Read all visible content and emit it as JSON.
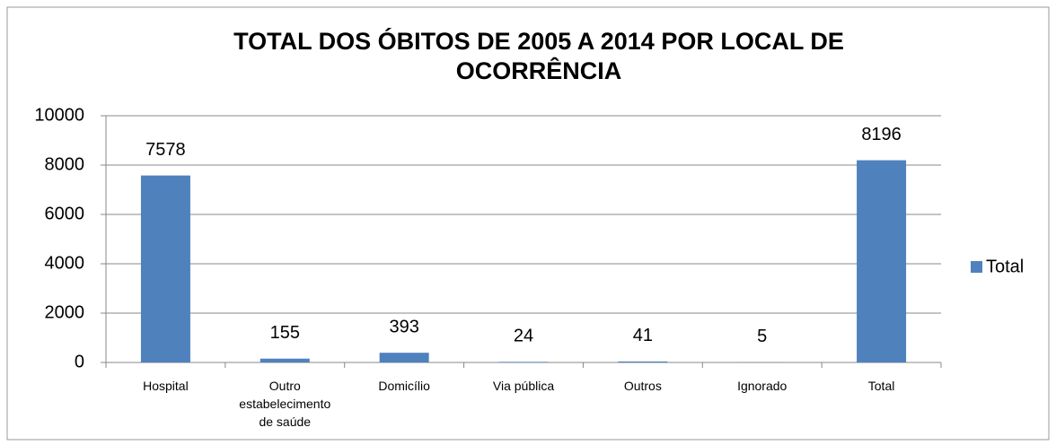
{
  "chart_data": {
    "type": "bar",
    "title": "TOTAL DOS ÓBITOS DE 2005 A 2014 POR LOCAL DE OCORRÊNCIA",
    "categories": [
      "Hospital",
      "Outro estabelecimento de saúde",
      "Domicílio",
      "Via pública",
      "Outros",
      "Ignorado",
      "Total"
    ],
    "series": [
      {
        "name": "Total",
        "color": "#4f81bd",
        "values": [
          7578,
          155,
          393,
          24,
          41,
          5,
          8196
        ]
      }
    ],
    "ylim": [
      0,
      10000
    ],
    "yticks": [
      0,
      2000,
      4000,
      6000,
      8000,
      10000
    ],
    "grid": true,
    "legend": "right"
  }
}
